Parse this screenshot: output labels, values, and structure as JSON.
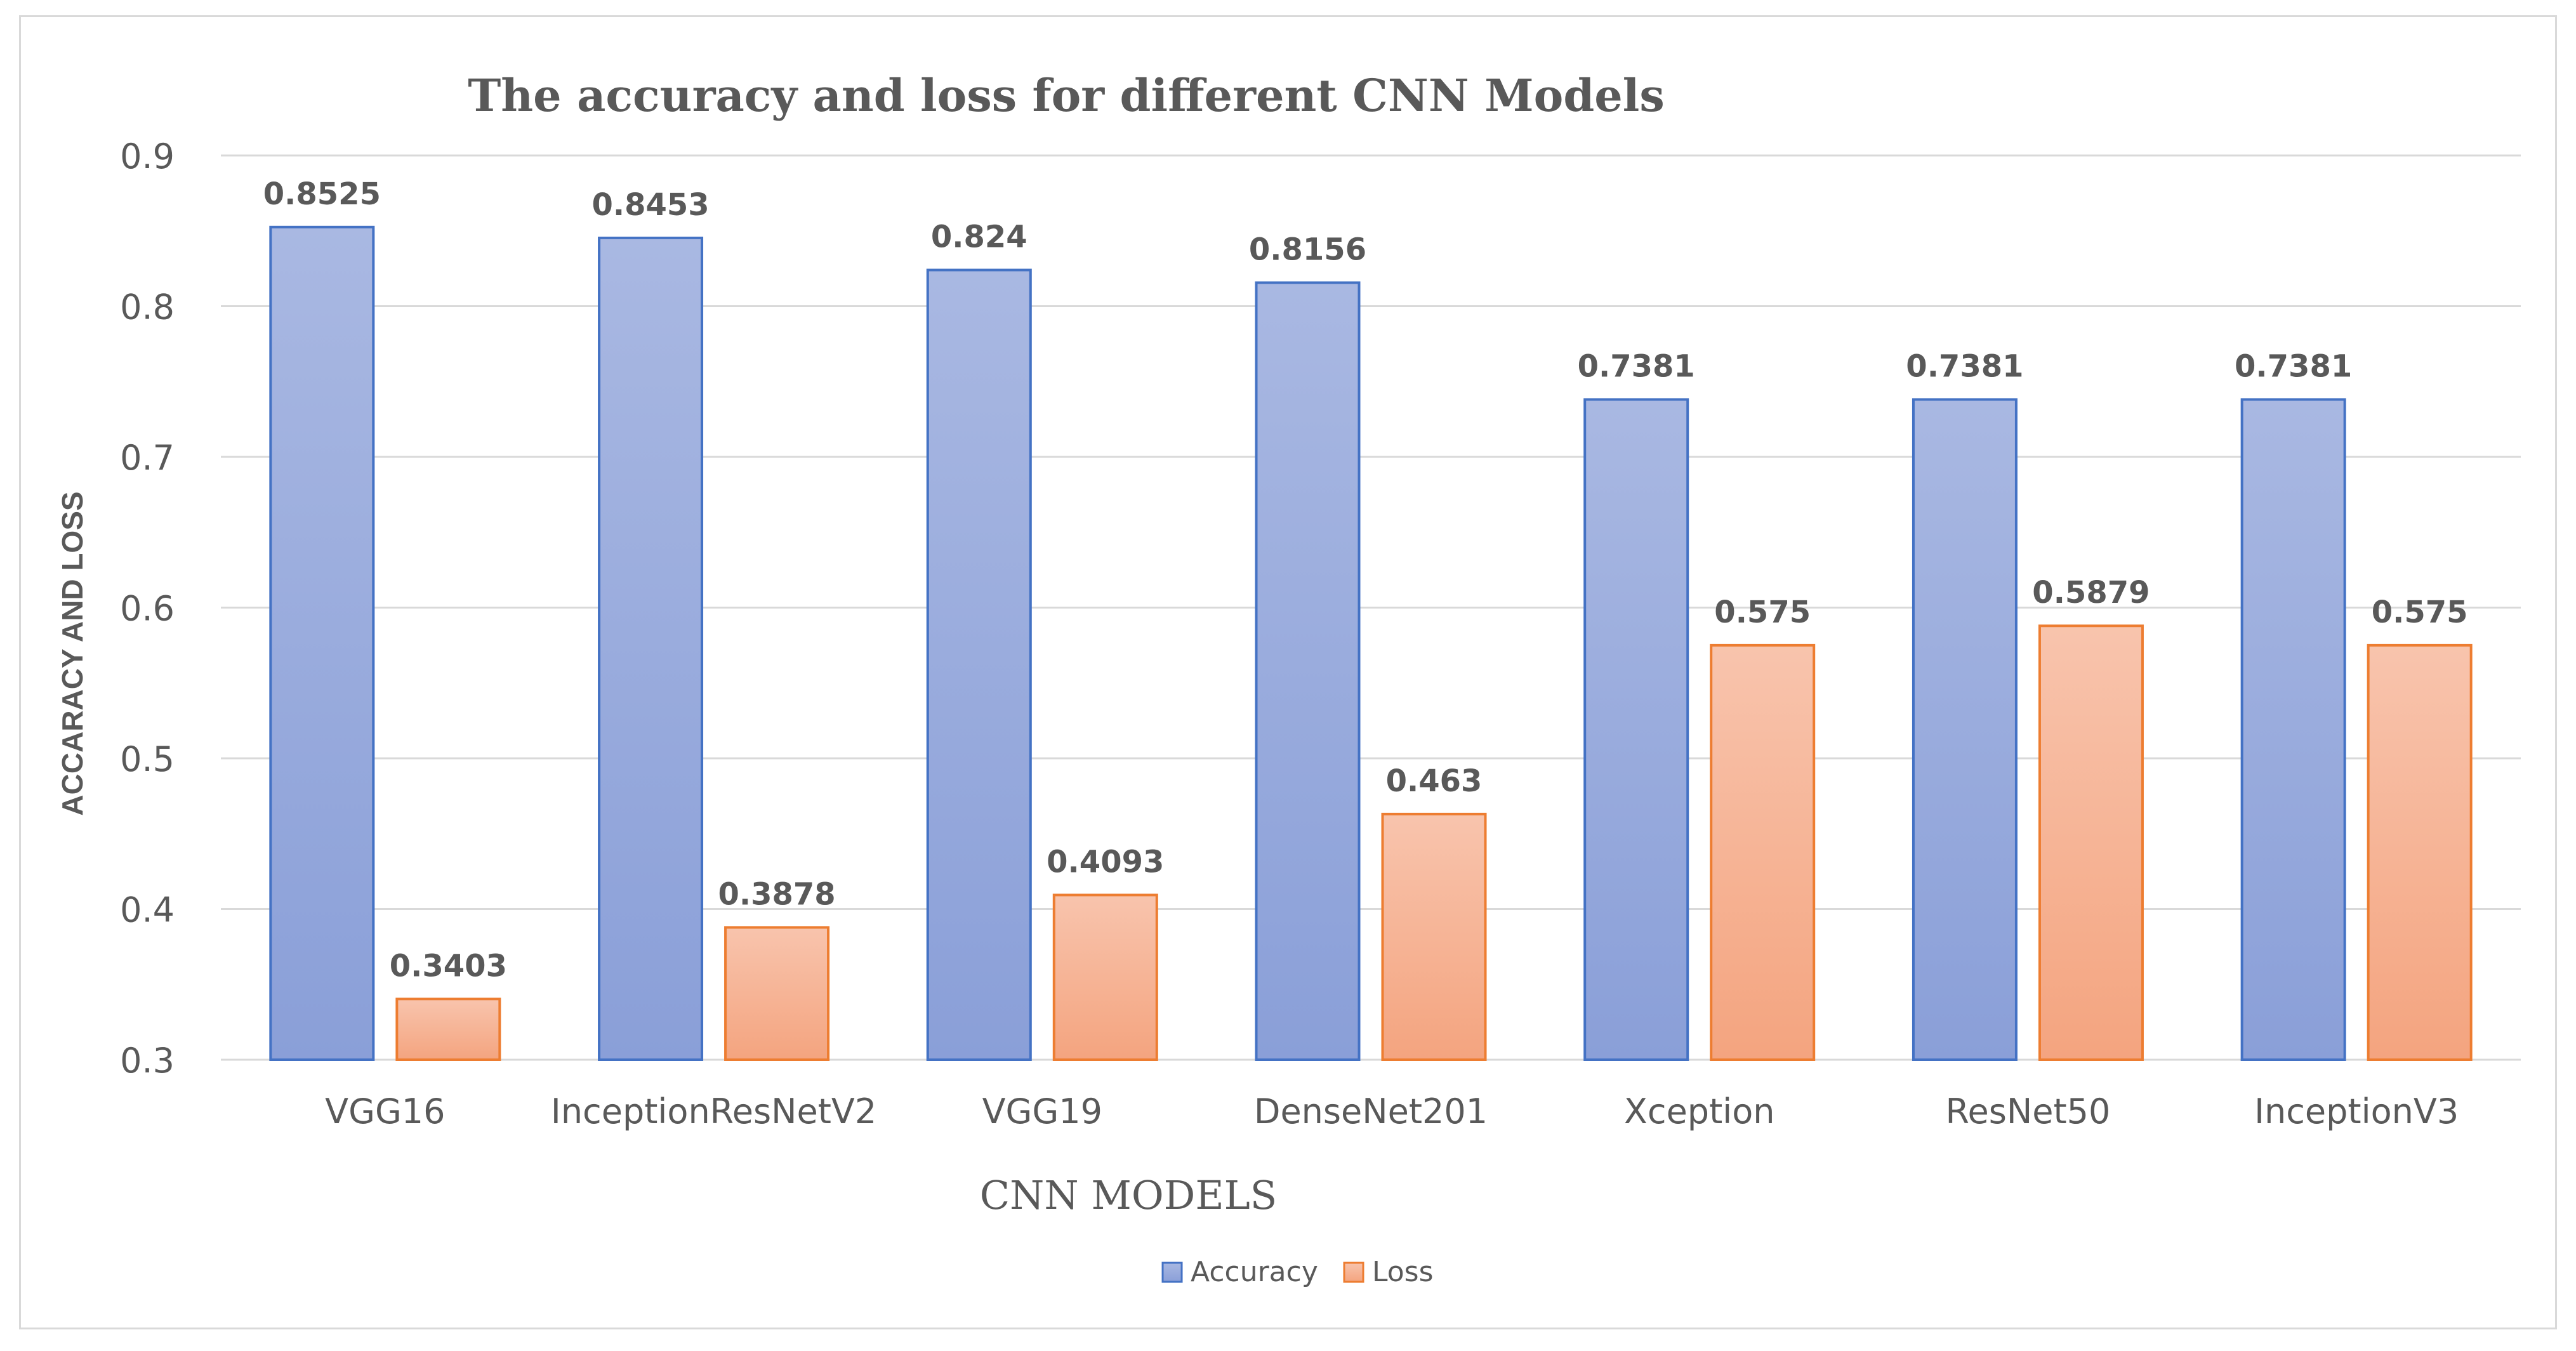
{
  "chart_data": {
    "type": "bar",
    "title": "The accuracy and loss for different CNN Models",
    "xlabel": "CNN MODELS",
    "ylabel": "ACCARACY AND LOSS",
    "ylim": [
      0.3,
      0.9
    ],
    "yticks": [
      "0.3",
      "0.4",
      "0.5",
      "0.6",
      "0.7",
      "0.8",
      "0.9"
    ],
    "grid": true,
    "legend_position": "bottom",
    "categories": [
      "VGG16",
      "InceptionResNetV2",
      "VGG19",
      "DenseNet201",
      "Xception",
      "ResNet50",
      "InceptionV3"
    ],
    "series": [
      {
        "name": "Accuracy",
        "values": [
          0.8525,
          0.8453,
          0.824,
          0.8156,
          0.7381,
          0.7381,
          0.7381
        ],
        "labels": [
          "0.8525",
          "0.8453",
          "0.824",
          "0.8156",
          "0.7381",
          "0.7381",
          "0.7381"
        ]
      },
      {
        "name": "Loss",
        "values": [
          0.3403,
          0.3878,
          0.4093,
          0.463,
          0.575,
          0.5879,
          0.575
        ],
        "labels": [
          "0.3403",
          "0.3878",
          "0.4093",
          "0.463",
          "0.575",
          "0.5879",
          "0.575"
        ]
      }
    ],
    "colors": {
      "accuracy_top": "#a9b8e2",
      "accuracy_bottom": "#8a9fd8",
      "accuracy_stroke": "#4472c4",
      "loss_top": "#f8c4ad",
      "loss_bottom": "#f4a47f",
      "loss_stroke": "#ed7d31",
      "grid": "#d9d9d9",
      "text": "#595959"
    }
  }
}
